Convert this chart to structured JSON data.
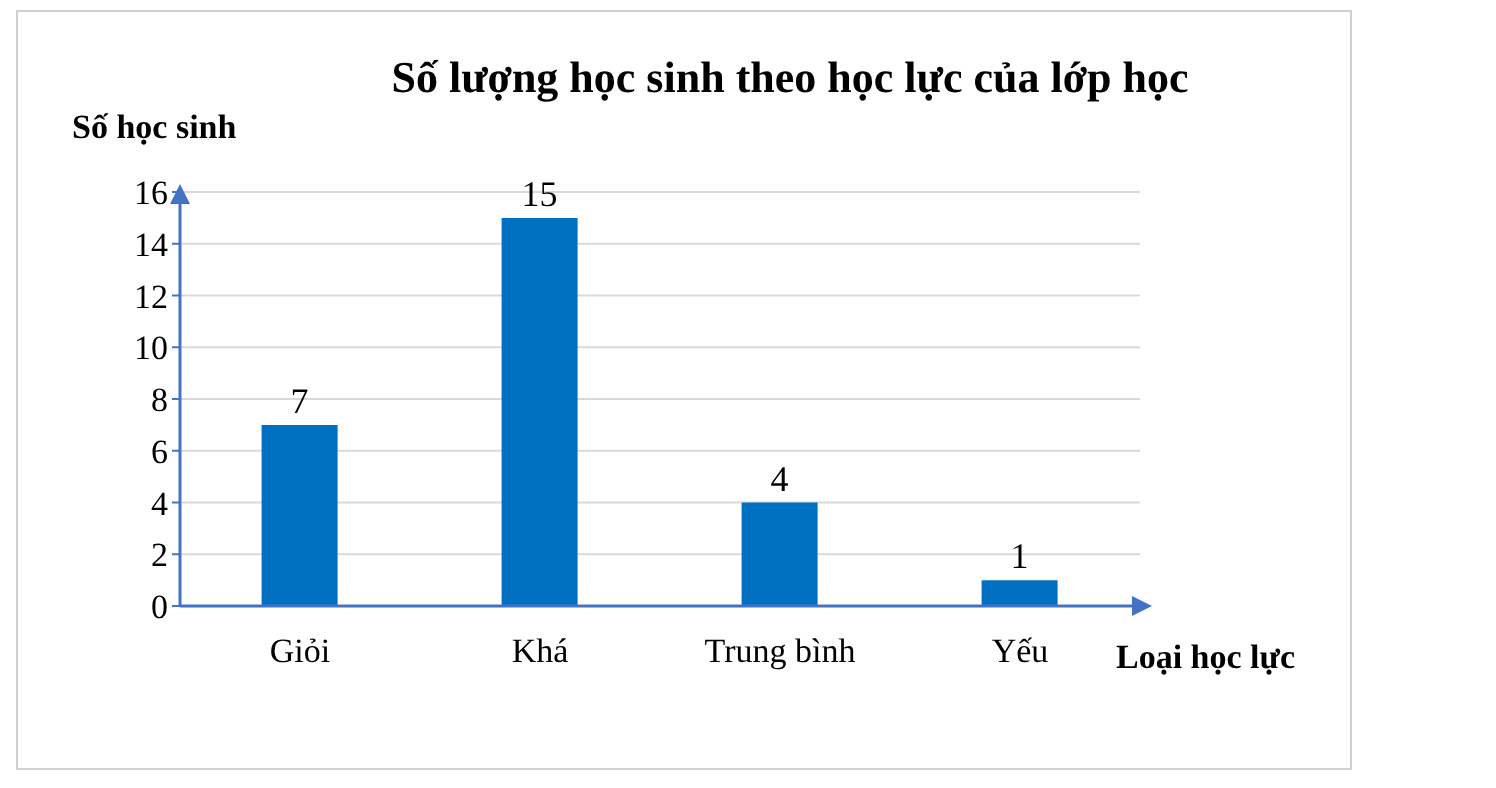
{
  "chart_data": {
    "type": "bar",
    "title": "Số lượng học sinh theo học lực của lớp học",
    "xlabel": "Loại học lực",
    "ylabel": "Số học sinh",
    "categories": [
      "Giỏi",
      "Khá",
      "Trung bình",
      "Yếu"
    ],
    "values": [
      7,
      15,
      4,
      1
    ],
    "color": "#0070c0",
    "ylim": [
      0,
      16
    ],
    "yticks": [
      0,
      2,
      4,
      6,
      8,
      10,
      12,
      14,
      16
    ],
    "grid": "y",
    "data_labels": true
  }
}
